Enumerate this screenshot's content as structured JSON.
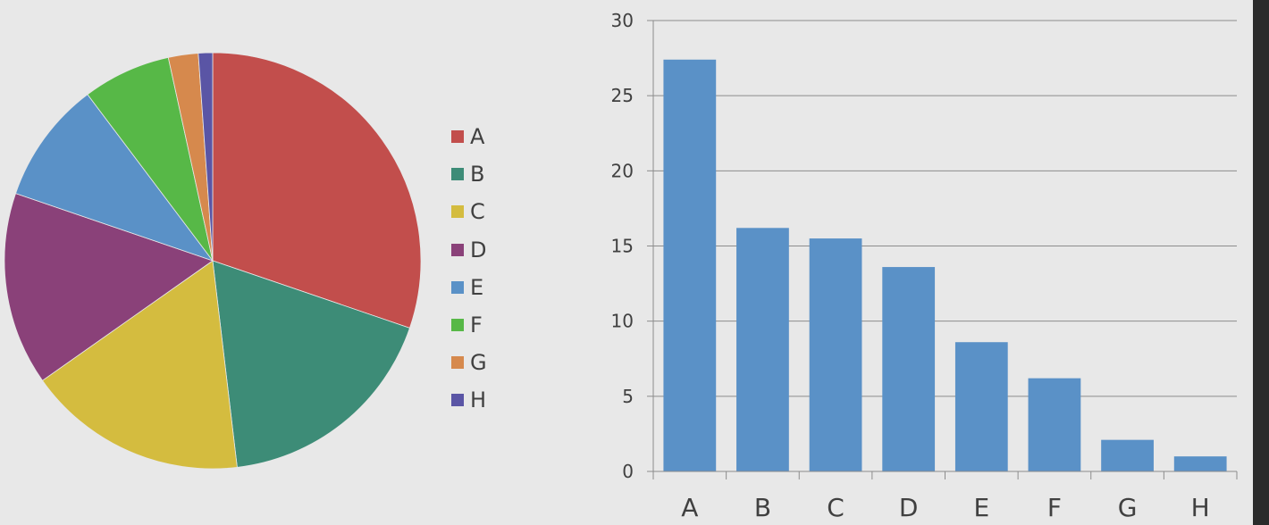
{
  "chart_data": [
    {
      "type": "pie",
      "categories": [
        "A",
        "B",
        "C",
        "D",
        "E",
        "F",
        "G",
        "H"
      ],
      "values": [
        27.4,
        16.2,
        15.5,
        13.6,
        8.6,
        6.2,
        2.1,
        1.0
      ],
      "colors": [
        "#c24e4c",
        "#3d8c77",
        "#d4bc3f",
        "#8a4179",
        "#5a91c7",
        "#57b847",
        "#d6894d",
        "#5a55a5"
      ],
      "start_angle": "12 o'clock",
      "direction": "clockwise",
      "legend": "right"
    },
    {
      "type": "bar",
      "categories": [
        "A",
        "B",
        "C",
        "D",
        "E",
        "F",
        "G",
        "H"
      ],
      "values": [
        27.4,
        16.2,
        15.5,
        13.6,
        8.6,
        6.2,
        2.1,
        1.0
      ],
      "bar_color": "#5a91c7",
      "ylim": [
        0,
        30
      ],
      "yticks": [
        0,
        5,
        10,
        15,
        20,
        25,
        30
      ],
      "grid": true,
      "title": "",
      "xlabel": "",
      "ylabel": ""
    }
  ]
}
